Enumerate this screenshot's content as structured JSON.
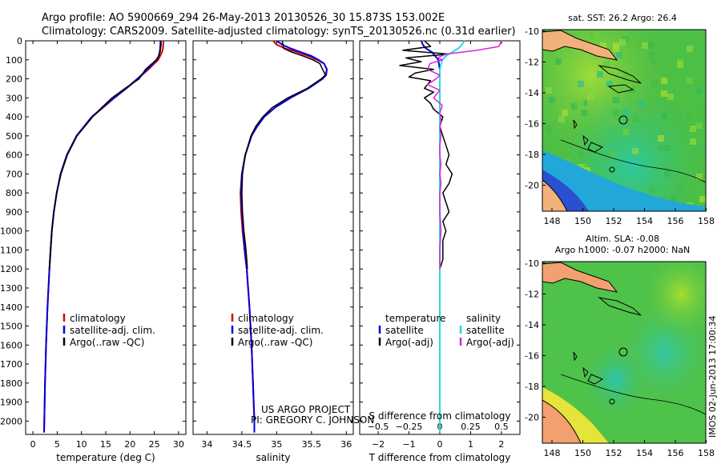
{
  "header": {
    "line1": "Argo profile: AO 5900669_294 26-May-2013 20130526_30 15.873S 153.002E",
    "line2": "Climatology: CARS2009. Satellite-adjusted climatology: synTS_20130526.nc (0.31d earlier)"
  },
  "depth_ticks": [
    "0",
    "100",
    "200",
    "300",
    "400",
    "500",
    "600",
    "700",
    "800",
    "900",
    "1000",
    "1100",
    "1200",
    "1300",
    "1400",
    "1500",
    "1600",
    "1700",
    "1800",
    "1900",
    "2000"
  ],
  "colors": {
    "climatology": "#dd0000",
    "satellite": "#0000dd",
    "argo": "#000000",
    "sat_sal": "#22dddd",
    "argo_sal": "#dd22dd"
  },
  "chart_data": [
    {
      "type": "line",
      "name": "temperature",
      "xlabel": "temperature (deg C)",
      "ylabel": "",
      "xlim": [
        -1.5,
        31.5
      ],
      "ylim": [
        2070,
        0
      ],
      "xticks": [
        0,
        5,
        10,
        15,
        20,
        25,
        30
      ],
      "xtick_labels": [
        "0",
        "5",
        "10",
        "15",
        "20",
        "25",
        "30"
      ],
      "legend": [
        "climatology",
        "satellite-adj. clim.",
        "Argo(..raw -QC)"
      ],
      "series": [
        {
          "name": "climatology",
          "depth": [
            0,
            40,
            60,
            80,
            100,
            150,
            200,
            250,
            300,
            350,
            400,
            500,
            600,
            700,
            800,
            900,
            1000,
            1200,
            1400,
            1600,
            1800,
            2000,
            2060
          ],
          "values": [
            26.9,
            26.8,
            26.6,
            26.2,
            25.8,
            23.8,
            21.6,
            19.3,
            16.8,
            14.5,
            12.2,
            9.0,
            7.0,
            5.7,
            4.9,
            4.3,
            3.9,
            3.4,
            3.0,
            2.7,
            2.5,
            2.35,
            2.3
          ]
        },
        {
          "name": "satellite-adj. clim.",
          "depth": [
            0,
            40,
            60,
            80,
            100,
            150,
            200,
            250,
            300,
            350,
            400,
            500,
            600,
            700,
            800,
            900,
            1000,
            1200,
            1400,
            1600,
            1800,
            2000,
            2060
          ],
          "values": [
            26.3,
            26.2,
            26.1,
            25.9,
            25.5,
            23.6,
            21.5,
            19.2,
            16.7,
            14.4,
            12.1,
            9.0,
            7.0,
            5.7,
            4.9,
            4.3,
            3.9,
            3.4,
            3.0,
            2.7,
            2.5,
            2.35,
            2.3
          ]
        },
        {
          "name": "Argo(..raw -QC)",
          "depth": [
            0,
            20,
            40,
            60,
            80,
            100,
            150,
            200,
            250,
            300,
            350,
            400,
            500,
            600,
            700,
            800,
            900,
            1000,
            1100,
            1200
          ],
          "values": [
            26.4,
            26.4,
            26.3,
            26.2,
            25.9,
            25.4,
            23.2,
            21.9,
            19.0,
            16.3,
            14.2,
            12.3,
            9.1,
            7.1,
            5.8,
            4.9,
            4.3,
            3.9,
            3.6,
            3.4
          ]
        }
      ]
    },
    {
      "type": "line",
      "name": "salinity",
      "xlabel": "salinity",
      "ylabel": "",
      "xlim": [
        33.8,
        36.1
      ],
      "ylim": [
        2070,
        0
      ],
      "xticks": [
        34,
        34.5,
        35,
        35.5,
        36
      ],
      "xtick_labels": [
        "34",
        "34.5",
        "35",
        "35.5",
        "36"
      ],
      "legend": [
        "climatology",
        "satellite-adj. clim.",
        "Argo(..raw -QC)"
      ],
      "series": [
        {
          "name": "climatology",
          "depth": [
            0,
            20,
            40,
            60,
            80,
            100,
            120,
            150,
            180,
            200,
            250,
            300,
            350,
            400,
            450,
            500,
            600,
            700,
            800,
            900,
            1000,
            1100,
            1200,
            1400,
            1600,
            1800,
            2000,
            2060
          ],
          "values": [
            34.95,
            35.0,
            35.12,
            35.3,
            35.45,
            35.58,
            35.68,
            35.72,
            35.7,
            35.65,
            35.45,
            35.2,
            34.98,
            34.82,
            34.72,
            34.64,
            34.55,
            34.5,
            34.48,
            34.49,
            34.51,
            34.54,
            34.57,
            34.61,
            34.64,
            34.66,
            34.68,
            34.68
          ]
        },
        {
          "name": "satellite-adj. clim.",
          "depth": [
            0,
            20,
            40,
            60,
            80,
            100,
            120,
            150,
            180,
            200,
            250,
            300,
            350,
            400,
            450,
            500,
            600,
            700,
            800,
            900,
            1000,
            1100,
            1200,
            1400,
            1600,
            1800,
            2000,
            2060
          ],
          "values": [
            35.0,
            35.08,
            35.2,
            35.35,
            35.5,
            35.6,
            35.68,
            35.72,
            35.71,
            35.66,
            35.46,
            35.2,
            34.98,
            34.82,
            34.72,
            34.64,
            34.55,
            34.5,
            34.49,
            34.5,
            34.52,
            34.54,
            34.57,
            34.61,
            34.64,
            34.66,
            34.68,
            34.68
          ]
        },
        {
          "name": "Argo(..raw -QC)",
          "depth": [
            0,
            40,
            60,
            80,
            100,
            120,
            150,
            180,
            200,
            250,
            300,
            350,
            400,
            450,
            500,
            600,
            700,
            800,
            900,
            1000,
            1100,
            1150,
            1200
          ],
          "values": [
            35.08,
            35.1,
            35.22,
            35.38,
            35.52,
            35.62,
            35.66,
            35.7,
            35.64,
            35.44,
            35.16,
            34.94,
            34.8,
            34.7,
            34.63,
            34.55,
            34.51,
            34.5,
            34.51,
            34.53,
            34.56,
            34.57,
            34.58
          ]
        }
      ]
    },
    {
      "type": "line",
      "name": "difference",
      "xlabel": "T difference from climatology",
      "xlim": [
        -2.6,
        2.6
      ],
      "ylim": [
        2070,
        0
      ],
      "xticks": [
        -2,
        -1,
        0,
        1,
        2
      ],
      "xtick_labels": [
        "−2",
        "−1",
        "0",
        "1",
        "2"
      ],
      "top_axis": {
        "label": "S difference from climatology",
        "ticks": [
          -0.5,
          -0.25,
          0,
          0.25,
          0.5
        ],
        "tick_labels": [
          "−0.5",
          "−0.25",
          "0",
          "0.25",
          "0.5"
        ]
      },
      "legend_left_title": "temperature",
      "legend_right_title": "salinity",
      "legend_left": [
        "satellite",
        "Argo(-adj)"
      ],
      "legend_right": [
        "satellite",
        "Argo(-adj)"
      ],
      "series": [
        {
          "name": "T satellite",
          "depth": [
            0,
            20,
            40,
            60,
            80,
            100,
            150,
            200,
            300,
            500,
            800,
            1200,
            1700
          ],
          "values": [
            -0.6,
            -0.55,
            -0.45,
            -0.25,
            -0.15,
            -0.05,
            0,
            0,
            0,
            0,
            0,
            0,
            0
          ]
        },
        {
          "name": "T Argo(-adj)",
          "depth": [
            0,
            30,
            50,
            70,
            90,
            110,
            130,
            150,
            170,
            190,
            210,
            230,
            250,
            270,
            300,
            330,
            360,
            400,
            450,
            500,
            550,
            600,
            650,
            700,
            750,
            800,
            850,
            900,
            950,
            1000,
            1050,
            1100,
            1150,
            1200
          ],
          "values": [
            -0.5,
            -0.3,
            -1.2,
            0.3,
            -1.1,
            -0.6,
            -1.3,
            -0.2,
            -0.8,
            -1.0,
            -0.3,
            -0.4,
            -0.5,
            -0.2,
            -0.5,
            -0.3,
            -0.2,
            0.1,
            0.0,
            0.1,
            0.2,
            0.3,
            0.2,
            0.4,
            0.3,
            0.1,
            0.2,
            0.3,
            0.1,
            0.2,
            0.1,
            0.1,
            0.1,
            0.0
          ]
        },
        {
          "name": "S satellite",
          "depth": [
            0,
            20,
            40,
            60,
            80,
            100,
            150,
            200,
            300,
            500,
            800,
            1200,
            1600,
            2000,
            2060
          ],
          "values": [
            0.2,
            0.18,
            0.15,
            0.1,
            0.05,
            0.02,
            0,
            0,
            0,
            0,
            0,
            0,
            0,
            0,
            0
          ]
        },
        {
          "name": "S Argo(-adj)",
          "depth": [
            0,
            30,
            50,
            70,
            90,
            100,
            120,
            150,
            180,
            200,
            230,
            260,
            300,
            340,
            380,
            420,
            460,
            500,
            550,
            600,
            650,
            700,
            750,
            800,
            900,
            1000,
            1100,
            1200
          ],
          "values": [
            0.5,
            0.48,
            0.3,
            0.05,
            -0.02,
            0.02,
            -0.08,
            -0.1,
            0.0,
            -0.03,
            -0.1,
            0.0,
            -0.05,
            0.02,
            0.0,
            0.01,
            0.0,
            0.01,
            0.0,
            0.0,
            0.01,
            0.0,
            0.01,
            0.0,
            0.0,
            0.01,
            0.0,
            0.0
          ]
        }
      ]
    }
  ],
  "maps": {
    "top_title": "sat. SST: 26.2 Argo: 26.4",
    "bottom_title1": "Altim. SLA: -0.08",
    "bottom_title2": "Argo h1000: -0.07 h2000: NaN",
    "lon_ticks": [
      "148",
      "150",
      "152",
      "154",
      "156",
      "158"
    ],
    "lat_ticks": [
      "-10",
      "-12",
      "-14",
      "-16",
      "-18",
      "-20"
    ],
    "side_stamp": "IMOS 02-Jun-2013 17:00:34"
  },
  "credit": {
    "line1": "US ARGO PROJECT",
    "line2": "PI: GREGORY C. JOHNSON"
  }
}
